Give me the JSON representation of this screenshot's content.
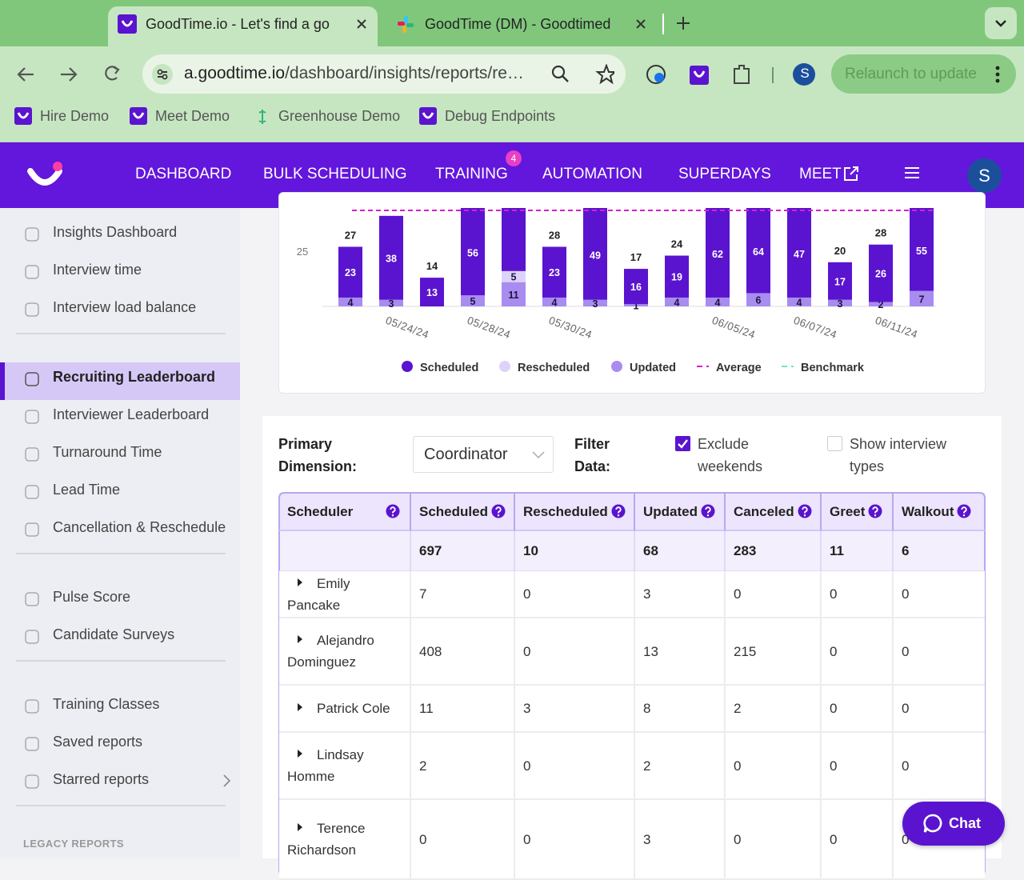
{
  "browser": {
    "tabs": [
      "GoodTime.io - Let's find a go",
      "GoodTime (DM) - Goodtimed"
    ],
    "url_host": "a.goodtime.io",
    "url_path": "/dashboard/insights/reports/re…",
    "profile": "S",
    "relaunch": "Relaunch to update",
    "bookmarks": [
      "Hire Demo",
      "Meet Demo",
      "Greenhouse Demo",
      "Debug Endpoints"
    ]
  },
  "nav": {
    "items": [
      "DASHBOARD",
      "BULK SCHEDULING",
      "TRAINING",
      "AUTOMATION",
      "SUPERDAYS",
      "MEET"
    ],
    "training_badge": "4",
    "avatar": "S"
  },
  "sidebar": {
    "sections": [
      {
        "items": [
          "Insights Dashboard",
          "Interview time",
          "Interview load balance"
        ]
      },
      {
        "items": [
          "Recruiting Leaderboard",
          "Interviewer Leaderboard",
          "Turnaround Time",
          "Lead Time",
          "Cancellation & Reschedule"
        ],
        "active": 0
      },
      {
        "items": [
          "Pulse Score",
          "Candidate Surveys"
        ]
      },
      {
        "items": [
          "Training Classes",
          "Saved reports",
          "Starred reports"
        ]
      }
    ],
    "legacy": "LEGACY REPORTS"
  },
  "chart": {
    "ytick": 25,
    "categories": [
      null,
      "05/24/24",
      null,
      "05/28/24",
      null,
      "05/30/24",
      null,
      null,
      null,
      "06/05/24",
      null,
      "06/07/24",
      null,
      "06/11/24",
      null
    ],
    "totals": [
      27,
      null,
      14,
      null,
      null,
      28,
      null,
      17,
      24,
      null,
      null,
      null,
      20,
      28,
      null
    ],
    "scheduled": [
      23,
      38,
      13,
      56,
      null,
      23,
      49,
      16,
      19,
      62,
      64,
      47,
      17,
      26,
      55
    ],
    "rescheduled": [
      null,
      null,
      null,
      null,
      5,
      null,
      null,
      null,
      null,
      null,
      null,
      null,
      null,
      null,
      null
    ],
    "updated": [
      4,
      3,
      null,
      5,
      11,
      4,
      3,
      1,
      4,
      4,
      6,
      4,
      3,
      2,
      7
    ],
    "colors": {
      "scheduled": "#5a14cf",
      "rescheduled": "#ddd3fa",
      "updated": "#a98cf0"
    },
    "legend": [
      {
        "name": "Scheduled",
        "color": "#5a14cf",
        "style": "dot"
      },
      {
        "name": "Rescheduled",
        "color": "#ddd3fa",
        "style": "dot"
      },
      {
        "name": "Updated",
        "color": "#a98cf0",
        "style": "dot"
      },
      {
        "name": "Average",
        "color": "#d91ec8",
        "style": "dash"
      },
      {
        "name": "Benchmark",
        "color": "#6fe3cf",
        "style": "dash"
      }
    ]
  },
  "filters": {
    "primary_label": "Primary Dimension:",
    "primary_value": "Coordinator",
    "filter_label": "Filter Data:",
    "options": [
      {
        "label": "Exclude weekends",
        "checked": true
      },
      {
        "label": "Show interview types",
        "checked": false
      }
    ]
  },
  "table": {
    "columns": [
      "Scheduler",
      "Scheduled",
      "Rescheduled",
      "Updated",
      "Canceled",
      "Greet",
      "Walkout"
    ],
    "totals": [
      697,
      10,
      68,
      283,
      11,
      6
    ],
    "rows": [
      [
        "Emily Pancake",
        7,
        0,
        3,
        0,
        0,
        0
      ],
      [
        "Alejandro Dominguez",
        408,
        0,
        13,
        215,
        0,
        0
      ],
      [
        "Patrick Cole",
        11,
        3,
        8,
        2,
        0,
        0
      ],
      [
        "Lindsay Homme",
        2,
        0,
        2,
        0,
        0,
        0
      ],
      [
        "Terence Richardson",
        0,
        0,
        3,
        0,
        0,
        0
      ]
    ]
  },
  "chat": "Chat"
}
